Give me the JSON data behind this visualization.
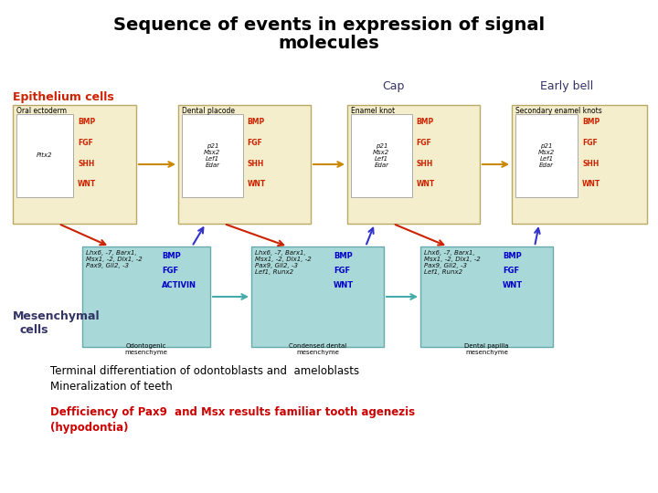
{
  "title_line1": "Sequence of events in expression of signal",
  "title_line2": "molecules",
  "bg_color": "#ffffff",
  "label_epithelium": "Epithelium cells",
  "label_mesenchymal": "Mesenchymal\n    cells",
  "cap_label": "Cap",
  "early_bell_label": "Early bell",
  "top_boxes": [
    {
      "label": "Oral ectoderm",
      "inner_italic": "Pitx2",
      "has_inner_box": true,
      "signals": [
        "BMP",
        "FGF",
        "SHH",
        "WNT"
      ]
    },
    {
      "label": "Dental placode",
      "inner_italic": "p21\nMsx2\nLef1\nEdar",
      "has_inner_box": true,
      "signals": [
        "BMP",
        "FGF",
        "SHH",
        "WNT"
      ]
    },
    {
      "label": "Enamel knot",
      "inner_italic": "p21\nMsx2\nLef1\nEdar",
      "has_inner_box": true,
      "signals": [
        "BMP",
        "FGF",
        "SHH",
        "WNT"
      ]
    },
    {
      "label": "Secondary enamel knots",
      "inner_italic": "p21\nMsx2\nLef1\nEdar",
      "has_inner_box": true,
      "signals": [
        "BMP",
        "FGF",
        "SHH",
        "WNT"
      ]
    }
  ],
  "bottom_boxes": [
    {
      "label": "Odontogenic\nmesenchyme",
      "inner_italic": "Lhx6, -7, Barx1,\nMsx1, -2, Dlx1, -2\nPax9, Gli2, -3",
      "signals": [
        "BMP",
        "FGF",
        "ACTIVIN"
      ],
      "sig_color": "#0000cc"
    },
    {
      "label": "Condensed dental\nmesenchyme",
      "inner_italic": "Lhx6, -7, Barx1,\nMsx1, -2, Dlx1, -2\nPax9, Gli2, -3\nLef1, Runx2",
      "signals": [
        "BMP",
        "FGF",
        "WNT"
      ],
      "sig_color": "#0000cc"
    },
    {
      "label": "Dental papilla\nmesenchyme",
      "inner_italic": "Lhx6, -7, Barx1,\nMsx1, -2, Dlx1, -2\nPax9, Gli2, -3\nLef1, Runx2",
      "signals": [
        "BMP",
        "FGF",
        "WNT"
      ],
      "sig_color": "#0000cc"
    }
  ],
  "terminal_text": "Terminal differentiation of odontoblasts and  ameloblasts\nMineralization of teeth",
  "deficiency_text": "Defficiency of Pax9  and Msx results familiar tooth agenezis\n(hypodontia)"
}
